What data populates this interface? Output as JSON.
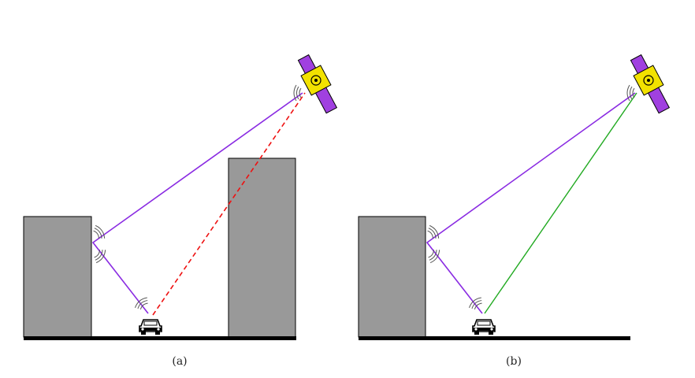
{
  "panels": [
    {
      "caption": "(a)",
      "scenario": "multipath-nlos",
      "direct_path": "blocked",
      "reflected_path": "visible"
    },
    {
      "caption": "(b)",
      "scenario": "multipath-los",
      "direct_path": "clear",
      "reflected_path": "visible"
    }
  ],
  "colors": {
    "building": "#999999",
    "ground": "#000000",
    "reflected_signal": "#8a2be2",
    "blocked_direct_signal": "#ee1111",
    "clear_direct_signal": "#22aa22",
    "satellite_panel": "#a040e0",
    "satellite_body": "#f0e000"
  },
  "icons": [
    "satellite-icon",
    "car-icon",
    "signal-wave-icon"
  ]
}
